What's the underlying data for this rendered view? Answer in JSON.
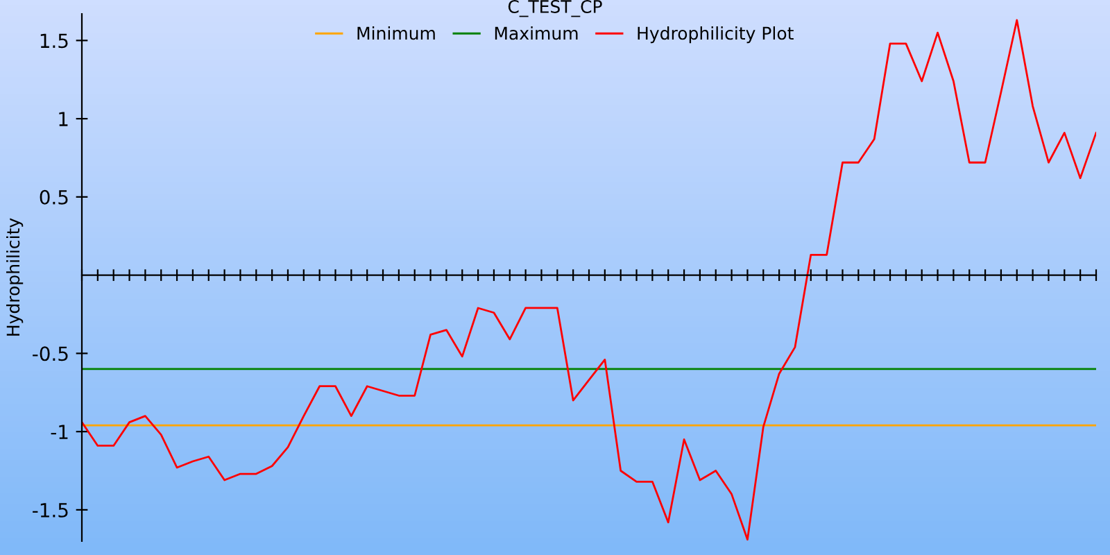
{
  "chart_data": {
    "type": "line",
    "title": "C_TEST_CP",
    "ylabel": "Hydrophilicity",
    "categories": [
      null,
      null,
      null,
      null,
      null,
      null,
      null,
      null,
      null,
      null,
      null,
      null,
      null,
      null,
      null,
      null,
      null,
      null,
      null,
      null,
      null,
      null,
      null,
      null,
      null,
      null,
      null,
      null,
      null,
      null,
      null,
      null,
      null,
      null,
      null,
      null,
      null,
      null,
      null,
      null,
      null,
      null,
      null,
      null,
      null,
      null,
      null,
      null,
      null,
      null,
      null,
      null,
      null,
      null,
      null,
      null,
      null,
      null,
      null,
      null,
      null,
      null,
      null,
      null,
      null
    ],
    "series": [
      {
        "name": "Minimum",
        "color": "#ffa500",
        "values": [
          -0.96,
          -0.96,
          -0.96,
          -0.96,
          -0.96,
          -0.96,
          -0.96,
          -0.96,
          -0.96,
          -0.96,
          -0.96,
          -0.96,
          -0.96,
          -0.96,
          -0.96,
          -0.96,
          -0.96,
          -0.96,
          -0.96,
          -0.96,
          -0.96,
          -0.96,
          -0.96,
          -0.96,
          -0.96,
          -0.96,
          -0.96,
          -0.96,
          -0.96,
          -0.96,
          -0.96,
          -0.96,
          -0.96,
          -0.96,
          -0.96,
          -0.96,
          -0.96,
          -0.96,
          -0.96,
          -0.96,
          -0.96,
          -0.96,
          -0.96,
          -0.96,
          -0.96,
          -0.96,
          -0.96,
          -0.96,
          -0.96,
          -0.96,
          -0.96,
          -0.96,
          -0.96,
          -0.96,
          -0.96,
          -0.96,
          -0.96,
          -0.96,
          -0.96,
          -0.96,
          -0.96,
          -0.96,
          -0.96,
          -0.96,
          -0.96
        ]
      },
      {
        "name": "Maximum",
        "color": "#008000",
        "values": [
          -0.6,
          -0.6,
          -0.6,
          -0.6,
          -0.6,
          -0.6,
          -0.6,
          -0.6,
          -0.6,
          -0.6,
          -0.6,
          -0.6,
          -0.6,
          -0.6,
          -0.6,
          -0.6,
          -0.6,
          -0.6,
          -0.6,
          -0.6,
          -0.6,
          -0.6,
          -0.6,
          -0.6,
          -0.6,
          -0.6,
          -0.6,
          -0.6,
          -0.6,
          -0.6,
          -0.6,
          -0.6,
          -0.6,
          -0.6,
          -0.6,
          -0.6,
          -0.6,
          -0.6,
          -0.6,
          -0.6,
          -0.6,
          -0.6,
          -0.6,
          -0.6,
          -0.6,
          -0.6,
          -0.6,
          -0.6,
          -0.6,
          -0.6,
          -0.6,
          -0.6,
          -0.6,
          -0.6,
          -0.6,
          -0.6,
          -0.6,
          -0.6,
          -0.6,
          -0.6,
          -0.6,
          -0.6,
          -0.6,
          -0.6,
          -0.6
        ]
      },
      {
        "name": "Hydrophilicity Plot",
        "color": "#ff0000",
        "values": [
          -0.94,
          -1.09,
          -1.09,
          -0.94,
          -0.9,
          -1.02,
          -1.23,
          -1.19,
          -1.16,
          -1.31,
          -1.27,
          -1.27,
          -1.22,
          -1.1,
          -0.9,
          -0.71,
          -0.71,
          -0.9,
          -0.71,
          -0.74,
          -0.77,
          -0.77,
          -0.38,
          -0.35,
          -0.52,
          -0.21,
          -0.24,
          -0.41,
          -0.21,
          -0.21,
          -0.21,
          -0.8,
          -0.67,
          -0.54,
          -1.25,
          -1.32,
          -1.32,
          -1.58,
          -1.05,
          -1.31,
          -1.25,
          -1.4,
          -1.69,
          -0.97,
          -0.63,
          -0.46,
          0.13,
          0.13,
          0.72,
          0.72,
          0.87,
          1.48,
          1.48,
          1.24,
          1.55,
          1.24,
          0.72,
          0.72,
          1.17,
          1.63,
          1.08,
          0.72,
          0.91,
          0.62,
          0.91
        ]
      }
    ],
    "ylim": [
      -1.7,
      1.67
    ],
    "yticks": [
      -1.5,
      -1,
      -0.5,
      0.5,
      1,
      1.5
    ],
    "tick_labels": "y",
    "legend": "top",
    "grid": false,
    "marker": "none",
    "line_style": "solid"
  }
}
